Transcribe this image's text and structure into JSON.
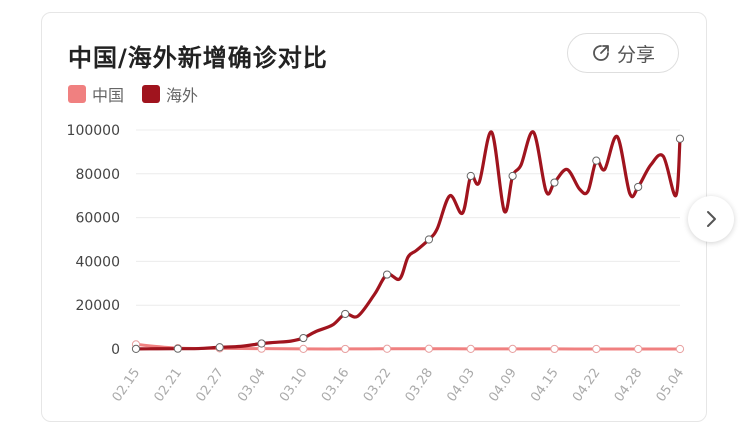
{
  "title": "中国/海外新增确诊对比",
  "share": {
    "label": "分享",
    "icon": "share-icon"
  },
  "next_button": {
    "icon": "chevron-right-icon"
  },
  "colors": {
    "china": "#f08080",
    "overseas": "#a0141e"
  },
  "chart_data": {
    "type": "line",
    "categories": [
      "02.15",
      "02.21",
      "02.27",
      "03.04",
      "03.10",
      "03.16",
      "03.22",
      "03.28",
      "04.03",
      "04.09",
      "04.15",
      "04.22",
      "04.28",
      "05.04"
    ],
    "ylim": [
      0,
      100000
    ],
    "yticks": [
      "100000",
      "80000",
      "60000",
      "40000",
      "20000",
      "0"
    ],
    "series": [
      {
        "name": "中国",
        "x": [
          0,
          1,
          2,
          3,
          4,
          5,
          6,
          7,
          8,
          9,
          10,
          11,
          12,
          13
        ],
        "values": [
          2100,
          400,
          300,
          150,
          40,
          30,
          100,
          120,
          50,
          40,
          30,
          10,
          5,
          2
        ]
      },
      {
        "name": "海外",
        "x": [
          0,
          0.5,
          1,
          1.5,
          2,
          2.5,
          3,
          3.3,
          3.7,
          4,
          4.3,
          4.7,
          5,
          5.3,
          5.7,
          6,
          6.3,
          6.5,
          6.7,
          7,
          7.2,
          7.5,
          7.8,
          8,
          8.2,
          8.5,
          8.8,
          9,
          9.2,
          9.5,
          9.8,
          10,
          10.3,
          10.6,
          10.8,
          11,
          11.2,
          11.5,
          11.8,
          12,
          12.3,
          12.6,
          12.9,
          13
        ],
        "values": [
          50,
          100,
          150,
          200,
          800,
          1200,
          2500,
          3000,
          3600,
          5000,
          8000,
          11000,
          16000,
          15000,
          25000,
          34000,
          32000,
          42000,
          45000,
          50000,
          55000,
          70000,
          62000,
          79000,
          76000,
          99000,
          63000,
          79000,
          84000,
          99000,
          72000,
          76000,
          82000,
          73000,
          72000,
          86000,
          82000,
          97000,
          71000,
          74000,
          84000,
          88000,
          70000,
          96000
        ]
      }
    ]
  }
}
